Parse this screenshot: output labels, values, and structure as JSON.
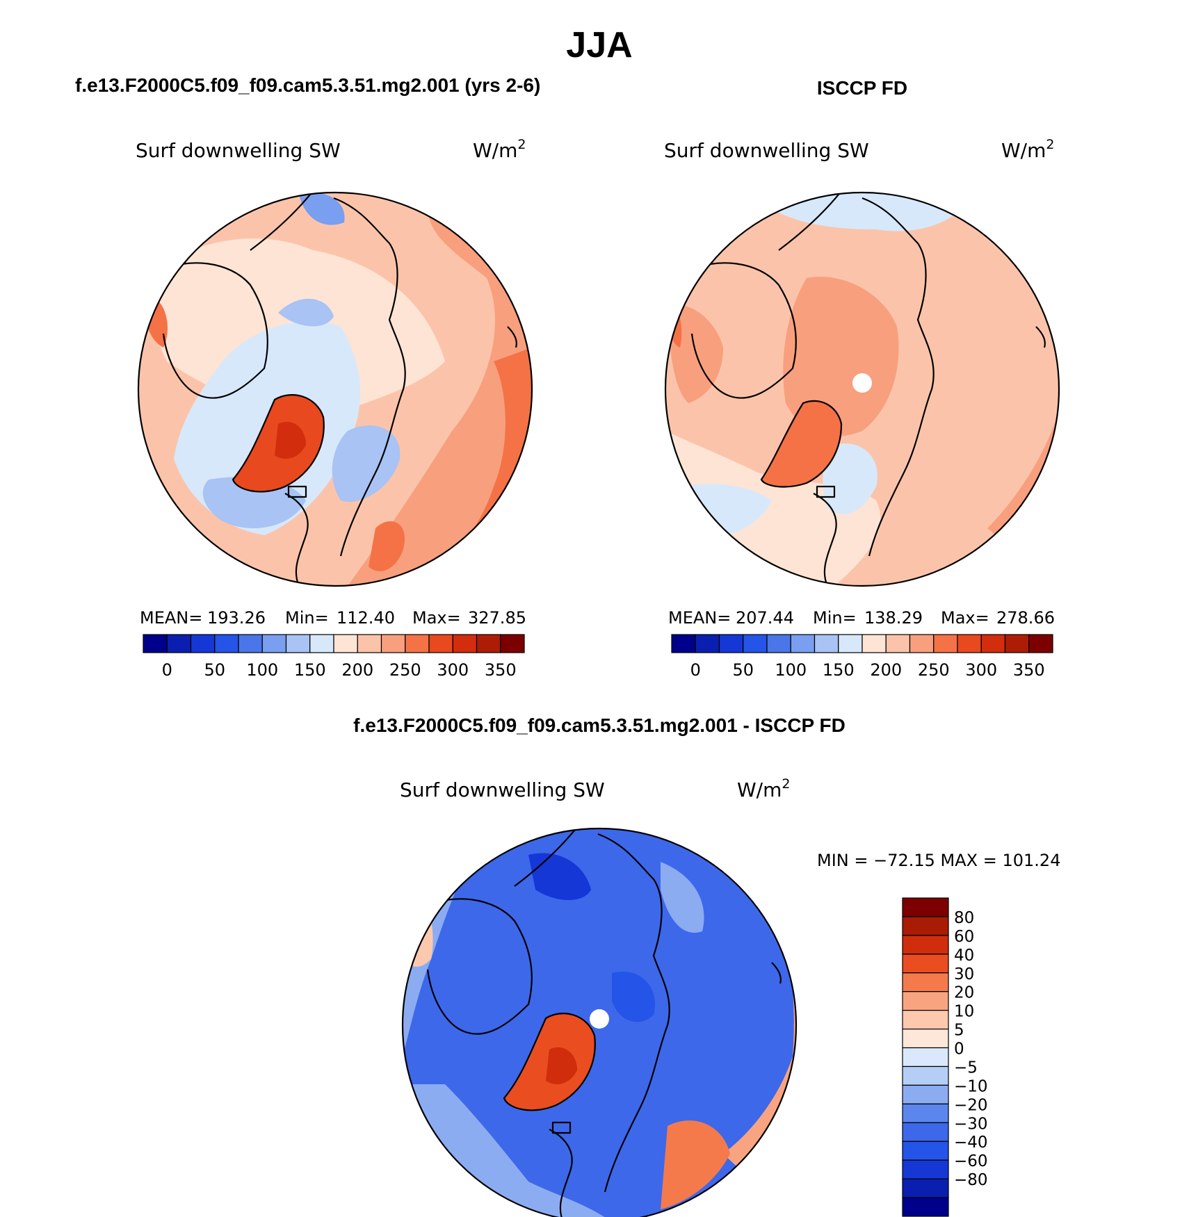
{
  "chart_data": {
    "type": "heatmap",
    "title": "JJA",
    "palette_abs": [
      "#00008b",
      "#0a1fb0",
      "#1437d6",
      "#2454e8",
      "#4a76ea",
      "#7a9ef0",
      "#a8c3f4",
      "#d7e8fb",
      "#fde4d4",
      "#fbc4aa",
      "#f89f7e",
      "#f47246",
      "#e8491e",
      "#d22d0c",
      "#ad1c05",
      "#7d0000"
    ],
    "palette_diff": [
      "#00008b",
      "#0a1fb0",
      "#1437d6",
      "#2454e8",
      "#3d68ea",
      "#5a86ee",
      "#8cacf2",
      "#b5cef6",
      "#d9e9fb",
      "#fde7d9",
      "#fcc8ae",
      "#f9a480",
      "#f47a4c",
      "#ea4d1f",
      "#cf2d0b",
      "#a91b04",
      "#7d0000"
    ],
    "panels": [
      {
        "id": "model",
        "case_title": "f.e13.F2000C5.f09_f09.cam5.3.51.mg2.001 (yrs 2-6)",
        "variable": "Surf downwelling SW",
        "units_base": "W/m",
        "units_sup": "2",
        "stats": {
          "mean_label": "MEAN=",
          "mean": "193.26",
          "min_label": "Min=",
          "min": "112.40",
          "max_label": "Max=",
          "max": "327.85"
        },
        "colorbar_ticks": [
          "0",
          "50",
          "100",
          "150",
          "200",
          "250",
          "300",
          "350"
        ],
        "pole_missing": false
      },
      {
        "id": "obs",
        "case_title": "ISCCP FD",
        "variable": "Surf downwelling SW",
        "units_base": "W/m",
        "units_sup": "2",
        "stats": {
          "mean_label": "MEAN=",
          "mean": "207.44",
          "min_label": "Min=",
          "min": "138.29",
          "max_label": "Max=",
          "max": "278.66"
        },
        "colorbar_ticks": [
          "0",
          "50",
          "100",
          "150",
          "200",
          "250",
          "300",
          "350"
        ],
        "pole_missing": true
      },
      {
        "id": "diff",
        "case_title": "f.e13.F2000C5.f09_f09.cam5.3.51.mg2.001 - ISCCP FD",
        "variable": "Surf downwelling SW",
        "units_base": "W/m",
        "units_sup": "2",
        "stats_line": "MIN = −72.15 MAX = 101.24",
        "colorbar_ticks": [
          "80",
          "60",
          "40",
          "30",
          "20",
          "10",
          "5",
          "0",
          "−5",
          "−10",
          "−20",
          "−30",
          "−40",
          "−60",
          "−80"
        ],
        "pole_missing": true
      }
    ]
  }
}
